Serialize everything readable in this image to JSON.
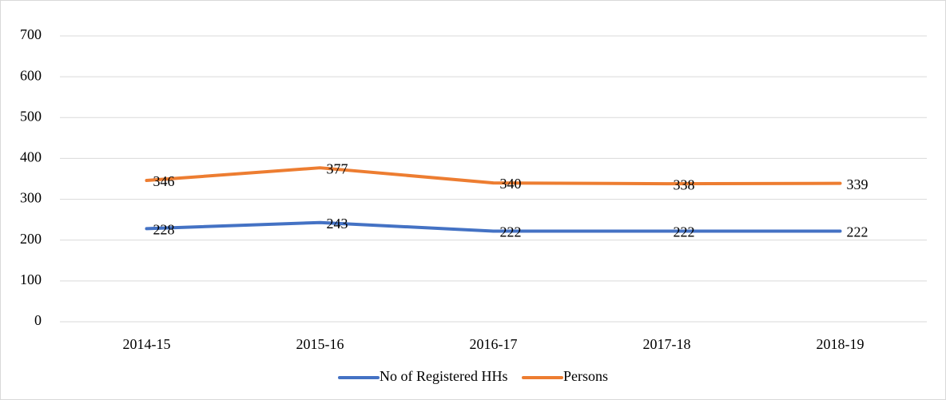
{
  "chart_data": {
    "type": "line",
    "categories": [
      "2014-15",
      "2015-16",
      "2016-17",
      "2017-18",
      "2018-19"
    ],
    "series": [
      {
        "name": "No of Registered HHs",
        "color": "#4472c4",
        "values": [
          228,
          243,
          222,
          222,
          222
        ]
      },
      {
        "name": "Persons",
        "color": "#ed7d31",
        "values": [
          346,
          377,
          340,
          338,
          339
        ]
      }
    ],
    "ylim": [
      0,
      700
    ],
    "yticks": [
      0,
      100,
      200,
      300,
      400,
      500,
      600,
      700
    ],
    "grid": true,
    "legend": "bottom"
  }
}
